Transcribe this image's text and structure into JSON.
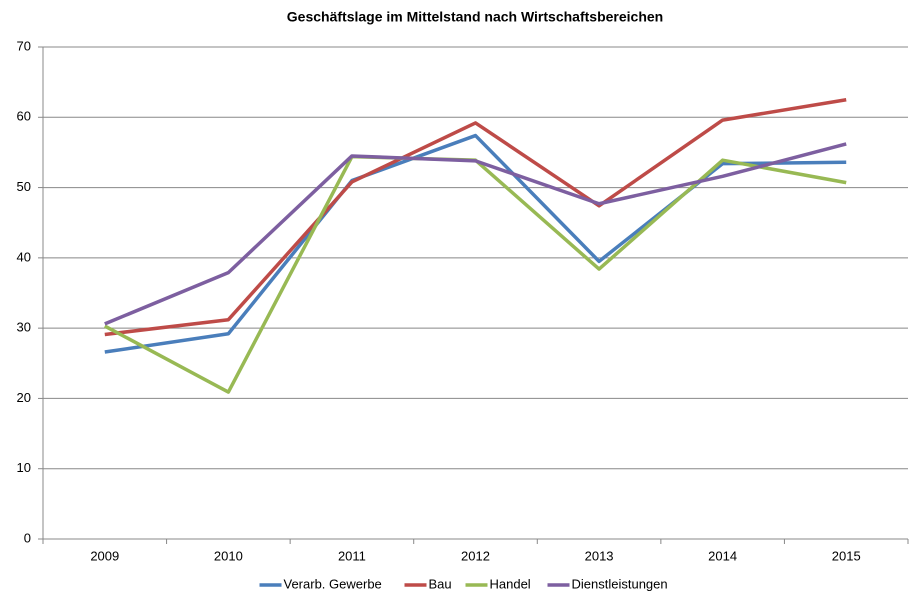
{
  "chart_data": {
    "type": "line",
    "title": "Geschäftslage im Mittelstand nach Wirtschaftsbereichen",
    "categories": [
      "2009",
      "2010",
      "2011",
      "2012",
      "2013",
      "2014",
      "2015"
    ],
    "series": [
      {
        "name": "Verarb. Gewerbe",
        "color": "#4a7ebb",
        "values": [
          26.6,
          29.2,
          51.0,
          57.4,
          39.5,
          53.4,
          53.6
        ]
      },
      {
        "name": "Bau",
        "color": "#be4b48",
        "values": [
          29.1,
          31.2,
          50.8,
          59.2,
          47.4,
          59.6,
          62.5
        ]
      },
      {
        "name": "Handel",
        "color": "#98b954",
        "values": [
          30.3,
          20.9,
          54.4,
          53.9,
          38.4,
          53.9,
          50.7
        ]
      },
      {
        "name": "Dienstleistungen",
        "color": "#7d5fa0",
        "values": [
          30.6,
          37.9,
          54.5,
          53.8,
          47.7,
          51.6,
          56.2
        ]
      }
    ],
    "ylim": [
      0,
      70
    ],
    "yticks": [
      0,
      10,
      20,
      30,
      40,
      50,
      60,
      70
    ],
    "grid": true,
    "legend": "bottom"
  }
}
